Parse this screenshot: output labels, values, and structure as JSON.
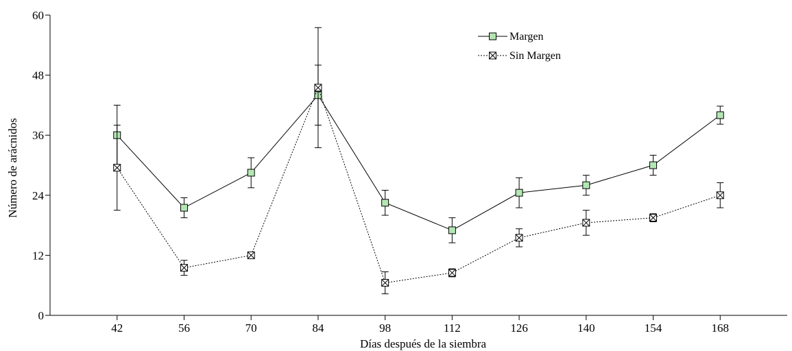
{
  "chart_data": {
    "type": "line",
    "title": "",
    "xlabel": "Días después de la siembra",
    "ylabel": "Número de arácnidos",
    "x": [
      42,
      56,
      70,
      84,
      98,
      112,
      126,
      140,
      154,
      168
    ],
    "xticks": [
      "42",
      "56",
      "70",
      "84",
      "98",
      "112",
      "126",
      "140",
      "154",
      "168"
    ],
    "xlim": [
      28,
      182
    ],
    "ylim": [
      0,
      60
    ],
    "yticks": [
      "0",
      "12",
      "24",
      "36",
      "48",
      "60"
    ],
    "grid": false,
    "legend_position": "top-right",
    "series": [
      {
        "name": "Margen",
        "line_style": "solid",
        "marker": "square",
        "marker_fill": "#b3e6b3",
        "values": [
          36.0,
          21.5,
          28.5,
          44.0,
          22.5,
          17.0,
          24.5,
          26.0,
          30.0,
          40.0
        ],
        "error": [
          6.0,
          2.0,
          3.0,
          6.0,
          2.5,
          2.5,
          3.0,
          2.0,
          2.0,
          1.8
        ]
      },
      {
        "name": "Sin Margen",
        "line_style": "dotted",
        "marker": "square-x",
        "marker_fill": "#ffffff",
        "values": [
          29.5,
          9.5,
          12.0,
          45.5,
          6.5,
          8.5,
          15.5,
          18.5,
          19.5,
          24.0
        ],
        "error": [
          8.5,
          1.5,
          0.5,
          12.0,
          2.2,
          0.8,
          1.8,
          2.5,
          0.8,
          2.5
        ]
      }
    ]
  }
}
